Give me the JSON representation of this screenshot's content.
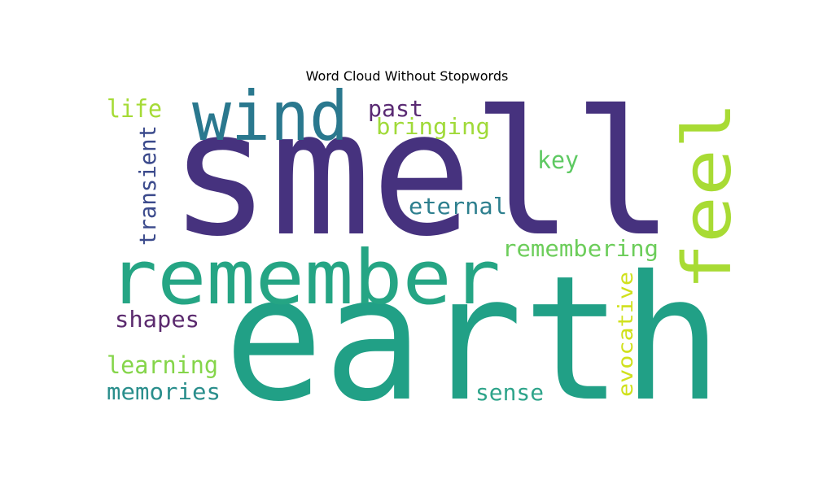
{
  "title": "Word Cloud Without Stopwords",
  "words": [
    {
      "text": "smell",
      "color": "#46327e"
    },
    {
      "text": "earth",
      "color": "#21a086"
    },
    {
      "text": "remember",
      "color": "#25a584"
    },
    {
      "text": "wind",
      "color": "#2a788e"
    },
    {
      "text": "feel",
      "color": "#a8db34"
    },
    {
      "text": "past",
      "color": "#5a2a73"
    },
    {
      "text": "bringing",
      "color": "#a0da39"
    },
    {
      "text": "life",
      "color": "#a5db36"
    },
    {
      "text": "key",
      "color": "#5ec962"
    },
    {
      "text": "transient",
      "color": "#3b4a8c"
    },
    {
      "text": "eternal",
      "color": "#2d7f8e"
    },
    {
      "text": "remembering",
      "color": "#6ccd5a"
    },
    {
      "text": "evocative",
      "color": "#d0e11c"
    },
    {
      "text": "shapes",
      "color": "#5b2a6e"
    },
    {
      "text": "learning",
      "color": "#85d54a"
    },
    {
      "text": "memories",
      "color": "#2a8e8c"
    },
    {
      "text": "sense",
      "color": "#2ea48a"
    }
  ]
}
